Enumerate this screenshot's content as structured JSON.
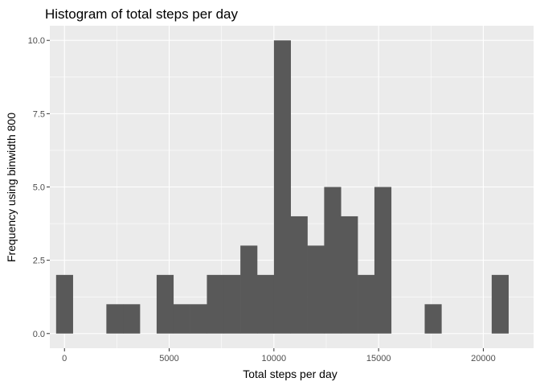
{
  "chart_data": {
    "type": "histogram",
    "title": "Histogram of total steps per day",
    "xlabel": "Total steps per day",
    "ylabel": "Frequency using binwidth 800",
    "binwidth": 800,
    "xlim": [
      -700,
      22400
    ],
    "ylim": [
      -0.5,
      10.5
    ],
    "x_ticks": [
      0,
      5000,
      10000,
      15000,
      20000
    ],
    "x_tick_labels": [
      "0",
      "5000",
      "10000",
      "15000",
      "20000"
    ],
    "y_ticks": [
      0,
      2.5,
      5,
      7.5,
      10
    ],
    "y_tick_labels": [
      "0.0",
      "2.5",
      "5.0",
      "7.5",
      "10.0"
    ],
    "bins": [
      {
        "x": 0,
        "count": 2
      },
      {
        "x": 800,
        "count": 0
      },
      {
        "x": 1600,
        "count": 0
      },
      {
        "x": 2400,
        "count": 1
      },
      {
        "x": 3200,
        "count": 1
      },
      {
        "x": 4000,
        "count": 0
      },
      {
        "x": 4800,
        "count": 2
      },
      {
        "x": 5600,
        "count": 1
      },
      {
        "x": 6400,
        "count": 1
      },
      {
        "x": 7200,
        "count": 2
      },
      {
        "x": 8000,
        "count": 2
      },
      {
        "x": 8800,
        "count": 3
      },
      {
        "x": 9600,
        "count": 2
      },
      {
        "x": 10400,
        "count": 10
      },
      {
        "x": 11200,
        "count": 4
      },
      {
        "x": 12000,
        "count": 3
      },
      {
        "x": 12800,
        "count": 5
      },
      {
        "x": 13600,
        "count": 4
      },
      {
        "x": 14400,
        "count": 2
      },
      {
        "x": 15200,
        "count": 5
      },
      {
        "x": 16000,
        "count": 0
      },
      {
        "x": 16800,
        "count": 0
      },
      {
        "x": 17600,
        "count": 1
      },
      {
        "x": 18400,
        "count": 0
      },
      {
        "x": 19200,
        "count": 0
      },
      {
        "x": 20000,
        "count": 0
      },
      {
        "x": 20800,
        "count": 2
      }
    ],
    "grid": true,
    "colors": {
      "panel": "#ebebeb",
      "grid_major": "#ffffff",
      "bar": "#595959",
      "tick_text": "#4d4d4d",
      "tick_mark": "#333333"
    }
  }
}
